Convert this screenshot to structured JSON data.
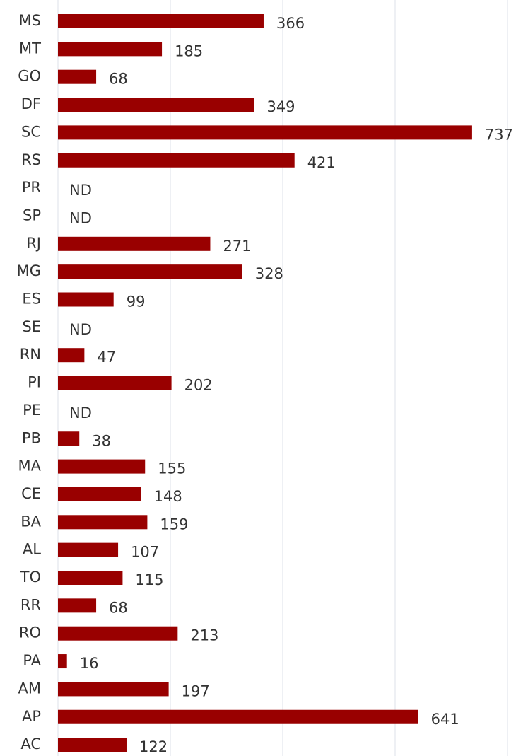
{
  "chart_data": {
    "type": "barh",
    "categories": [
      "MS",
      "MT",
      "GO",
      "DF",
      "SC",
      "RS",
      "PR",
      "SP",
      "RJ",
      "MG",
      "ES",
      "SE",
      "RN",
      "PI",
      "PE",
      "PB",
      "MA",
      "CE",
      "BA",
      "AL",
      "TO",
      "RR",
      "RO",
      "PA",
      "AM",
      "AP",
      "AC"
    ],
    "values": [
      366,
      185,
      68,
      349,
      737,
      421,
      null,
      null,
      271,
      328,
      99,
      null,
      47,
      202,
      null,
      38,
      155,
      148,
      159,
      107,
      115,
      68,
      213,
      16,
      197,
      641,
      122
    ],
    "value_labels": [
      "366",
      "185",
      "68",
      "349",
      "737",
      "421",
      "ND",
      "ND",
      "271",
      "328",
      "99",
      "ND",
      "47",
      "202",
      "ND",
      "38",
      "155",
      "148",
      "159",
      "107",
      "115",
      "68",
      "213",
      "16",
      "197",
      "641",
      "122"
    ],
    "color": "#990000",
    "xlim": [
      0,
      800
    ],
    "xticks": [
      0,
      200,
      400,
      600,
      800
    ],
    "grid": true
  }
}
